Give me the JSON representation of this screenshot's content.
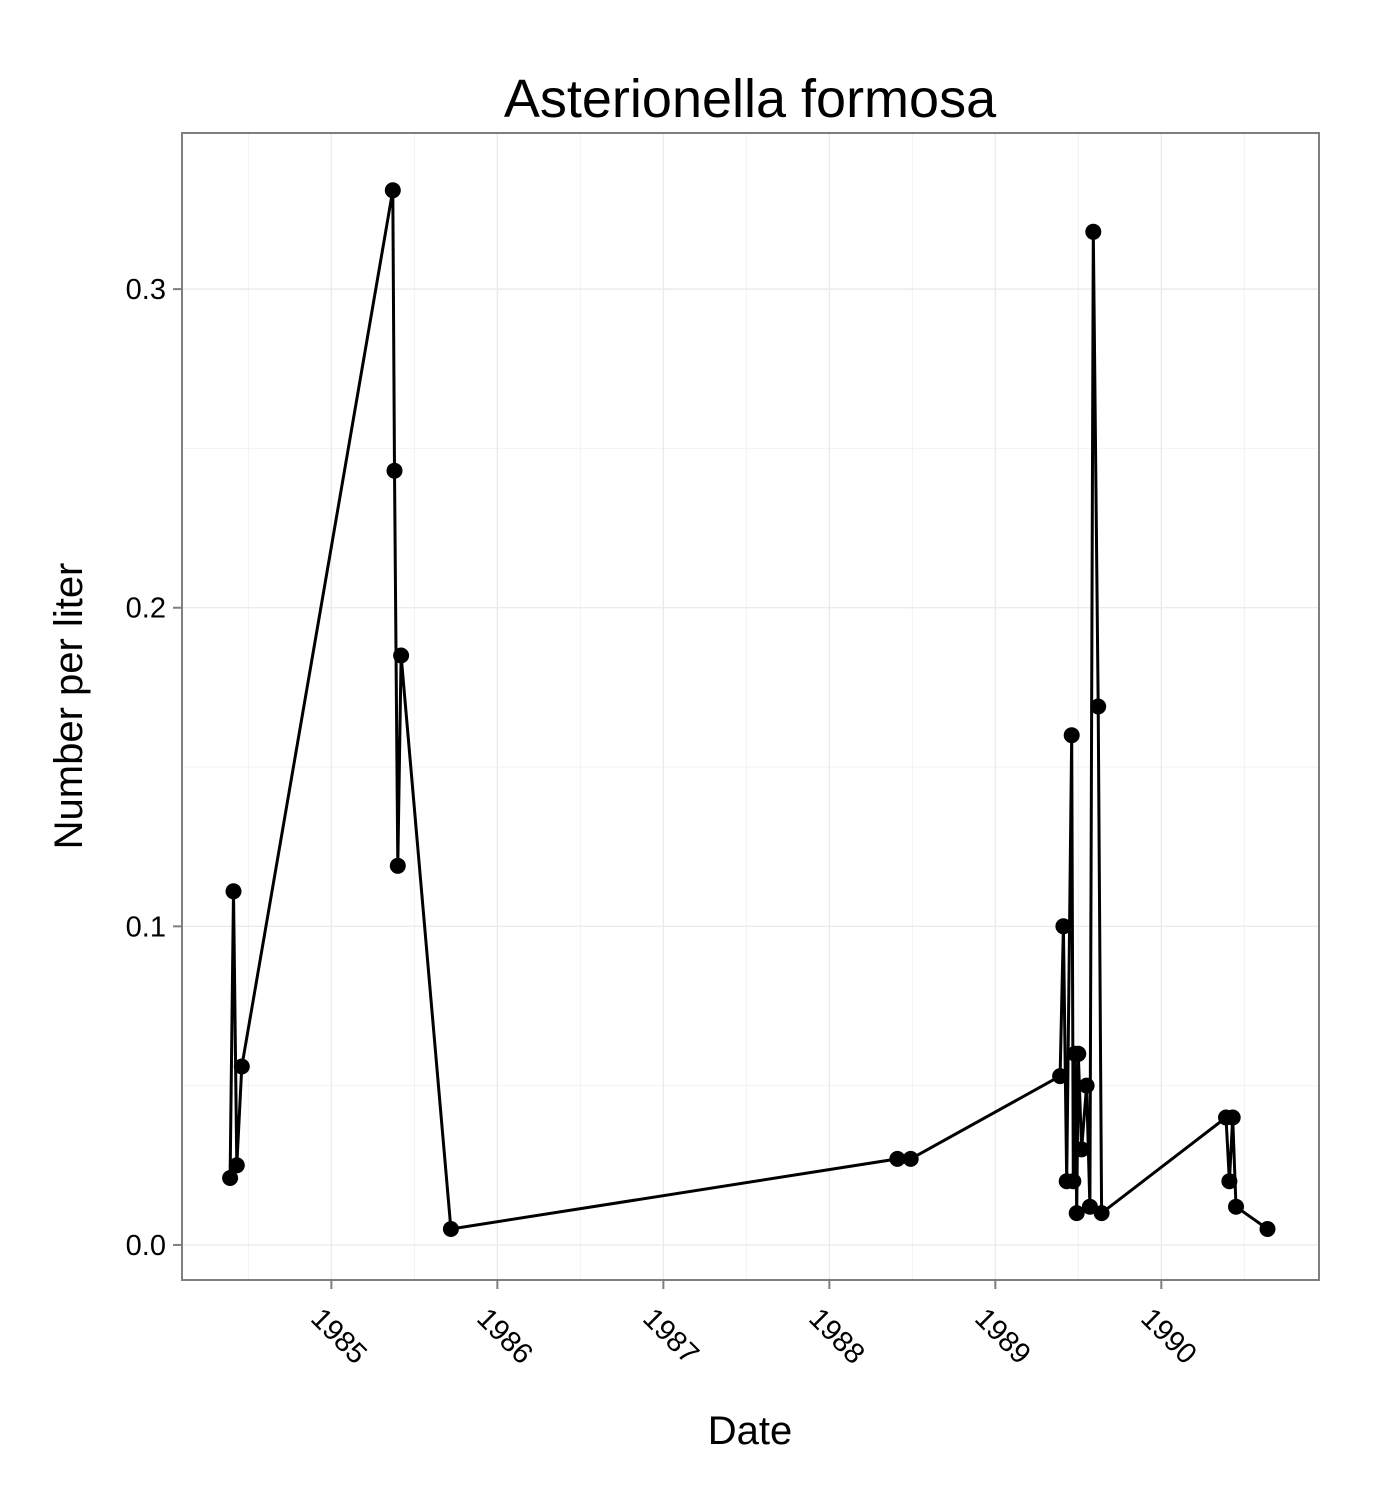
{
  "chart_data": {
    "type": "line",
    "title": "Asterionella formosa",
    "xlabel": "Date",
    "ylabel": "Number per liter",
    "x_ticks": [
      "1985",
      "1986",
      "1987",
      "1988",
      "1989",
      "1990"
    ],
    "y_ticks": [
      "0.0",
      "0.1",
      "0.2",
      "0.3"
    ],
    "xlim": [
      1984.1,
      1990.95
    ],
    "ylim": [
      -0.011,
      0.349
    ],
    "grid": true,
    "background": "#ffffff",
    "grid_color": "#ebebeb",
    "line_color": "#000000",
    "series": [
      {
        "x": [
          1984.39,
          1984.41,
          1984.43,
          1984.46,
          1985.37,
          1985.38,
          1985.4,
          1985.42,
          1985.72,
          1988.41,
          1988.49,
          1989.39,
          1989.41,
          1989.43,
          1989.46,
          1989.47,
          1989.48,
          1989.49,
          1989.5,
          1989.52,
          1989.55,
          1989.57,
          1989.59,
          1989.62,
          1989.64,
          1990.39,
          1990.41,
          1990.43,
          1990.45,
          1990.64
        ],
        "y": [
          0.021,
          0.111,
          0.025,
          0.056,
          0.331,
          0.243,
          0.119,
          0.185,
          0.005,
          0.027,
          0.027,
          0.053,
          0.1,
          0.02,
          0.16,
          0.02,
          0.06,
          0.01,
          0.06,
          0.03,
          0.05,
          0.012,
          0.318,
          0.169,
          0.01,
          0.04,
          0.02,
          0.04,
          0.012,
          0.005
        ]
      }
    ]
  }
}
